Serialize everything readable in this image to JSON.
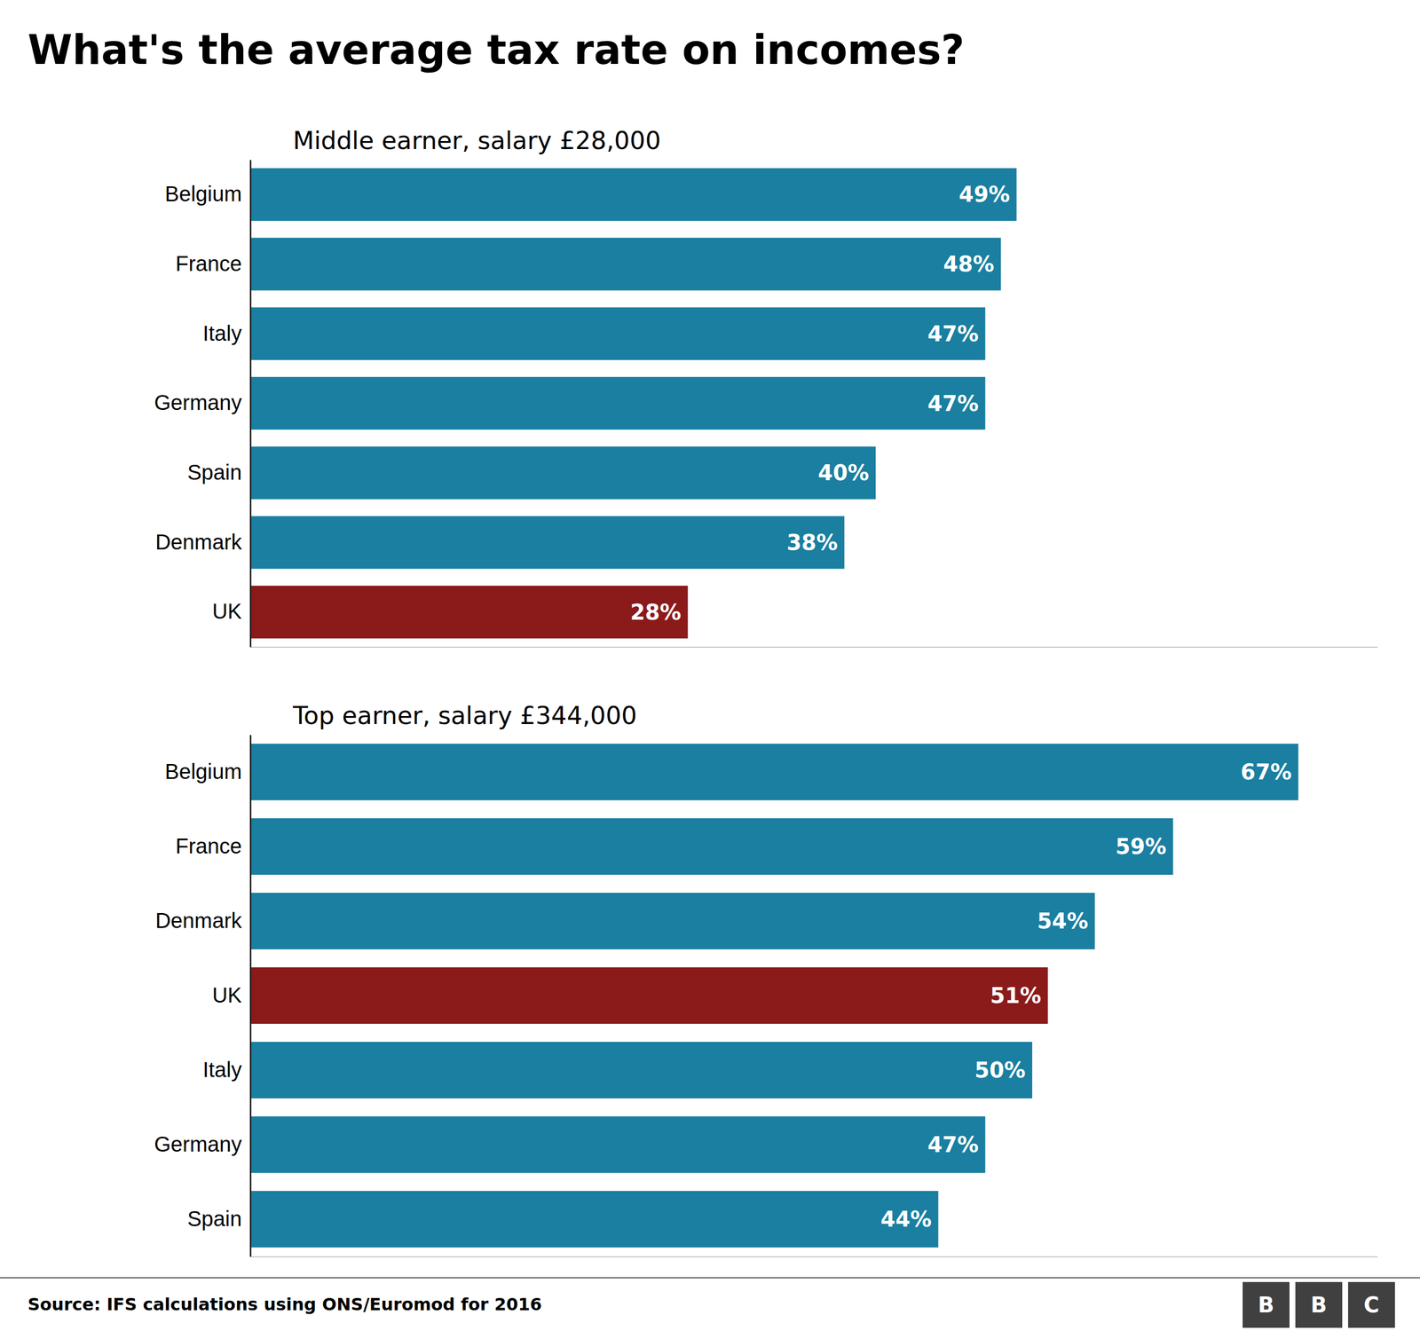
{
  "chart_data": [
    {
      "type": "bar",
      "orientation": "horizontal",
      "title": "What's the average tax rate on incomes?",
      "subtitle": "Middle earner, salary £28,000",
      "categories": [
        "Belgium",
        "France",
        "Italy",
        "Germany",
        "Spain",
        "Denmark",
        "UK"
      ],
      "values": [
        49,
        48,
        47,
        47,
        40,
        38,
        28
      ],
      "value_labels": [
        "49%",
        "48%",
        "47%",
        "47%",
        "40%",
        "38%",
        "28%"
      ],
      "colors": [
        "#1a7fa0",
        "#1a7fa0",
        "#1a7fa0",
        "#1a7fa0",
        "#1a7fa0",
        "#1a7fa0",
        "#8b1a1a"
      ],
      "xlim": [
        0,
        72
      ],
      "xticks": [],
      "grid": false,
      "data_labels": true,
      "tick_labels": "y"
    },
    {
      "type": "bar",
      "orientation": "horizontal",
      "subtitle": "Top earner, salary £344,000",
      "categories": [
        "Belgium",
        "France",
        "Denmark",
        "UK",
        "Italy",
        "Germany",
        "Spain"
      ],
      "values": [
        67,
        59,
        54,
        51,
        50,
        47,
        44
      ],
      "value_labels": [
        "67%",
        "59%",
        "54%",
        "51%",
        "50%",
        "47%",
        "44%"
      ],
      "colors": [
        "#1a7fa0",
        "#1a7fa0",
        "#1a7fa0",
        "#8b1a1a",
        "#1a7fa0",
        "#1a7fa0",
        "#1a7fa0"
      ],
      "xlim": [
        0,
        72
      ],
      "xticks": [],
      "grid": false,
      "data_labels": true,
      "tick_labels": "y",
      "annotations": [
        "Source: IFS calculations using ONS/Euromod for 2016",
        "B",
        "B",
        "C"
      ]
    }
  ]
}
